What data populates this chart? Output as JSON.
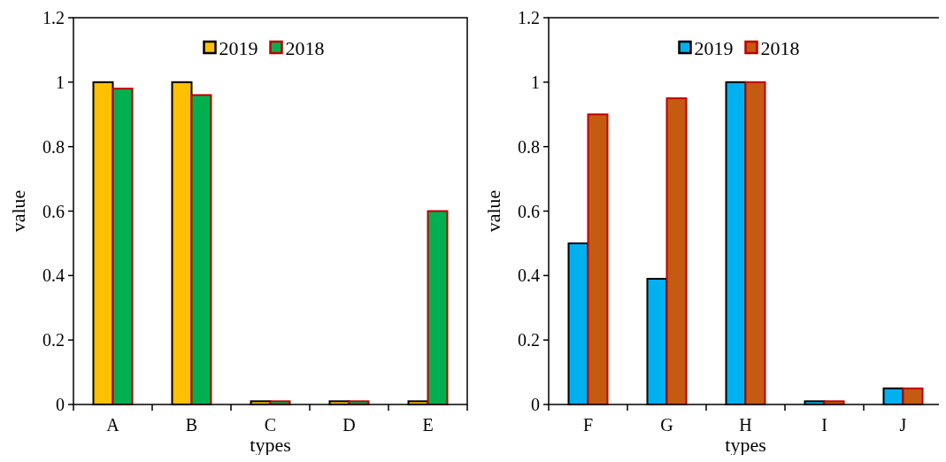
{
  "chart_data": [
    {
      "type": "bar",
      "xlabel": "types",
      "ylabel": "value",
      "categories": [
        "A",
        "B",
        "C",
        "D",
        "E"
      ],
      "series": [
        {
          "name": "2019",
          "color": "#ffc000",
          "values": [
            1,
            1,
            0.01,
            0.01,
            0.01
          ]
        },
        {
          "name": "2018",
          "color": "#00b050",
          "values": [
            0.98,
            0.96,
            0.01,
            0.01,
            0.6
          ]
        }
      ],
      "ylim": [
        0,
        1.2
      ],
      "yticks": [
        0,
        0.2,
        0.4,
        0.6,
        0.8,
        1,
        1.2
      ],
      "legend": "top",
      "grid": false
    },
    {
      "type": "bar",
      "xlabel": "types",
      "ylabel": "value",
      "categories": [
        "F",
        "G",
        "H",
        "I",
        "J"
      ],
      "series": [
        {
          "name": "2019",
          "color": "#00b0f0",
          "values": [
            0.5,
            0.39,
            1,
            0.01,
            0.05
          ]
        },
        {
          "name": "2018",
          "color": "#c55a11",
          "values": [
            0.9,
            0.95,
            1,
            0.01,
            0.05
          ]
        }
      ],
      "ylim": [
        0,
        1.2
      ],
      "yticks": [
        0,
        0.2,
        0.4,
        0.6,
        0.8,
        1,
        1.2
      ],
      "legend": "top",
      "grid": false
    }
  ]
}
